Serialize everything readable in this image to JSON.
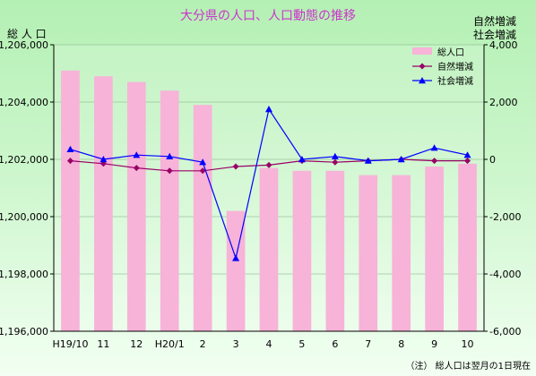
{
  "chart_data": {
    "type": "bar",
    "title": "大分県の人口、人口動態の推移",
    "left_axis_label": "総 人 口",
    "right_axis_label_line1": "自然増減",
    "right_axis_label_line2": "社会増減",
    "categories": [
      "H19/10",
      "11",
      "12",
      "H20/1",
      "2",
      "3",
      "4",
      "5",
      "6",
      "7",
      "8",
      "9",
      "10"
    ],
    "ylim_left": [
      1196000,
      1206000
    ],
    "ylim_right": [
      -6000,
      4000
    ],
    "yticks_left": [
      1196000,
      1198000,
      1200000,
      1202000,
      1204000,
      1206000
    ],
    "yticks_left_labels": [
      "1,196,000",
      "1,198,000",
      "1,200,000",
      "1,202,000",
      "1,204,000",
      "1,206,000"
    ],
    "yticks_right": [
      -6000,
      -4000,
      -2000,
      0,
      2000,
      4000
    ],
    "yticks_right_labels": [
      "-6,000",
      "-4,000",
      "-2,000",
      "0",
      "2,000",
      "4,000"
    ],
    "grid": true,
    "legend_position": "top-right",
    "series": [
      {
        "name": "総人口",
        "kind": "bar",
        "axis": "left",
        "color": "#f7b3d8",
        "values": [
          1205100,
          1204900,
          1204700,
          1204400,
          1203900,
          1200200,
          1201700,
          1201600,
          1201600,
          1201450,
          1201450,
          1201750,
          1201850
        ]
      },
      {
        "name": "自然増減",
        "kind": "line",
        "axis": "right",
        "color": "#990066",
        "marker": "diamond",
        "values": [
          -50,
          -150,
          -300,
          -400,
          -400,
          -250,
          -200,
          -50,
          -100,
          -50,
          0,
          -50,
          -50
        ]
      },
      {
        "name": "社会増減",
        "kind": "line",
        "axis": "right",
        "color": "#0000ff",
        "marker": "triangle",
        "values": [
          350,
          0,
          150,
          100,
          -100,
          -3450,
          1750,
          0,
          100,
          -50,
          0,
          400,
          150
        ]
      }
    ],
    "note": "（注） 総人口は翌月の1日現在"
  }
}
